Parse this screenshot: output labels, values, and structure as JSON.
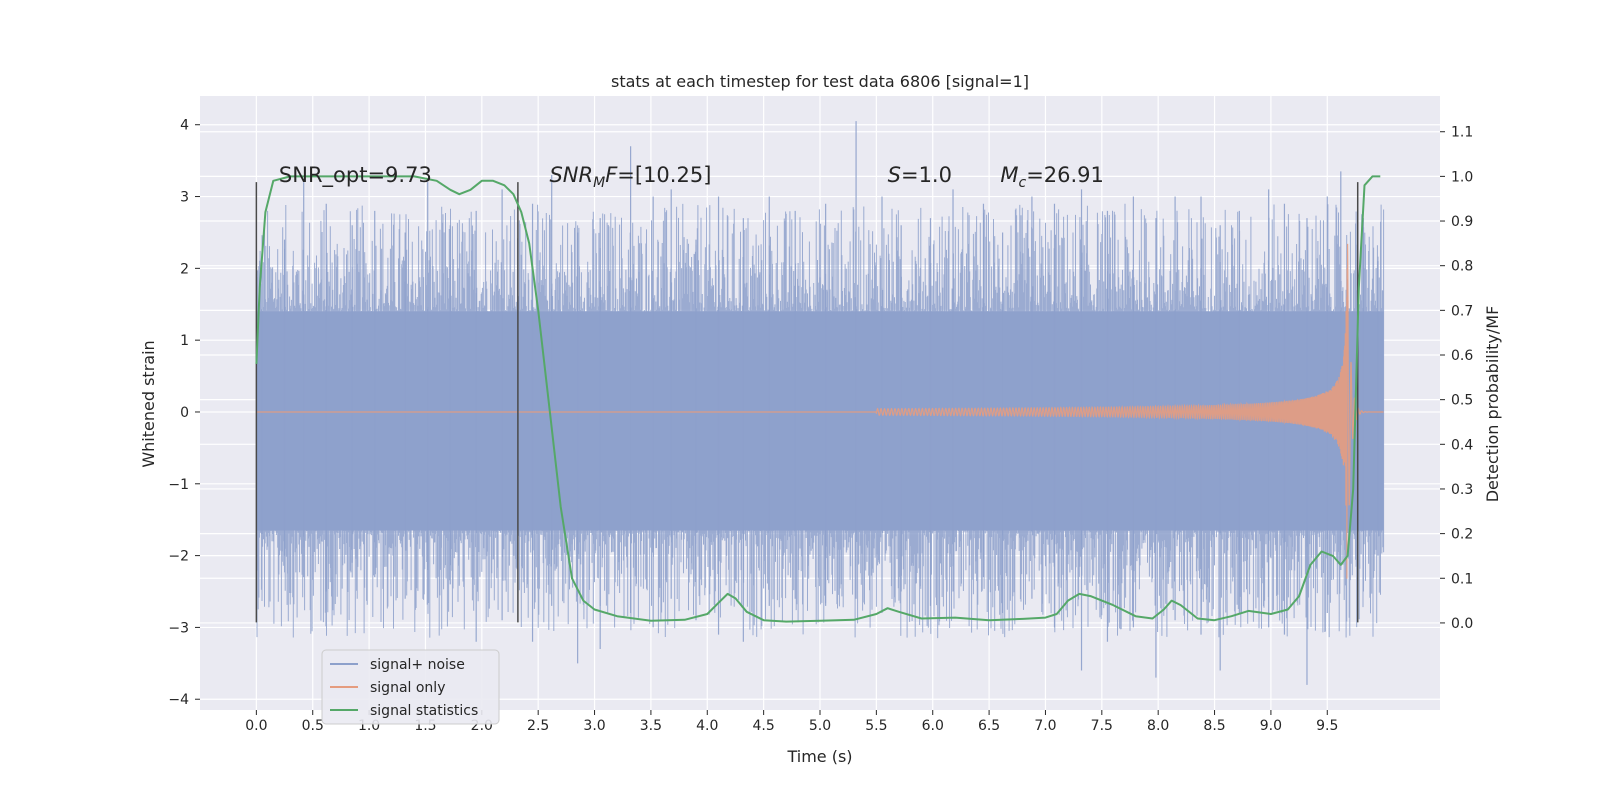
{
  "chart_data": {
    "type": "line",
    "title": "stats at each timestep for test data 6806 [signal=1]",
    "xlabel": "Time (s)",
    "ylabel": "Whitened strain",
    "ylabel_right": "Detection probability/MF",
    "xlim": [
      -0.5,
      10.5
    ],
    "ylim": [
      -4.15,
      4.4
    ],
    "ylim_right": [
      -0.195,
      1.18
    ],
    "x_ticks": [
      "0.0",
      "0.5",
      "1.0",
      "1.5",
      "2.0",
      "2.5",
      "3.0",
      "3.5",
      "4.0",
      "4.5",
      "5.0",
      "5.5",
      "6.0",
      "6.5",
      "7.0",
      "7.5",
      "8.0",
      "8.5",
      "9.0",
      "9.5"
    ],
    "y_ticks": [
      "−4",
      "−3",
      "−2",
      "−1",
      "0",
      "1",
      "2",
      "3",
      "4"
    ],
    "y_ticks_right": [
      "0.0",
      "0.1",
      "0.2",
      "0.3",
      "0.4",
      "0.5",
      "0.6",
      "0.7",
      "0.8",
      "0.9",
      "1.0",
      "1.1"
    ],
    "colors": {
      "noise": "#8da0cb",
      "signal": "#e59c7f",
      "stat": "#55a868",
      "vline": "#4a4a4a"
    },
    "annotations": [
      {
        "text": "SNR_opt=9.73",
        "x": 0.2,
        "y": 3.2
      },
      {
        "text": "SNR_MF=[10.25]",
        "x": 2.6,
        "y": 3.2
      },
      {
        "text": "S=1.0",
        "x": 5.6,
        "y": 3.2
      },
      {
        "text": "M_c=26.91",
        "x": 6.6,
        "y": 3.2
      }
    ],
    "vlines": [
      0.0,
      2.32,
      9.77
    ],
    "vline_range": [
      -2.93,
      3.2
    ],
    "series": [
      {
        "name": "signal+ noise",
        "note_hidden": "",
        "envelope": {
          "x": [
            0.0,
            10.0
          ],
          "typical": 1.4
        },
        "spikes": [
          [
            0.05,
            2.2,
            -1.7
          ],
          [
            0.25,
            2.4,
            -2.0
          ],
          [
            0.42,
            3.2,
            -2.3
          ],
          [
            0.62,
            2.9,
            -2.5
          ],
          [
            0.85,
            2.6,
            -2.1
          ],
          [
            1.05,
            2.8,
            -2.3
          ],
          [
            1.32,
            2.5,
            -2.6
          ],
          [
            1.52,
            3.2,
            -2.2
          ],
          [
            1.72,
            2.6,
            -2.4
          ],
          [
            1.95,
            2.8,
            -3.2
          ],
          [
            2.18,
            3.1,
            -2.9
          ],
          [
            2.45,
            2.9,
            -3.2
          ],
          [
            2.62,
            3.3,
            -2.7
          ],
          [
            2.85,
            2.5,
            -3.5
          ],
          [
            3.05,
            2.7,
            -3.3
          ],
          [
            3.32,
            3.7,
            -2.8
          ],
          [
            3.52,
            3.0,
            -3.0
          ],
          [
            3.68,
            3.1,
            -2.6
          ],
          [
            3.9,
            2.4,
            -2.9
          ],
          [
            4.1,
            3.0,
            -3.1
          ],
          [
            4.32,
            2.7,
            -3.2
          ],
          [
            4.55,
            3.0,
            -2.7
          ],
          [
            4.78,
            2.8,
            -2.6
          ],
          [
            5.05,
            2.9,
            -2.7
          ],
          [
            5.32,
            4.05,
            -2.6
          ],
          [
            5.55,
            3.0,
            -2.8
          ],
          [
            5.72,
            2.6,
            -2.5
          ],
          [
            5.98,
            2.7,
            -2.7
          ],
          [
            6.18,
            3.1,
            -2.5
          ],
          [
            6.45,
            2.9,
            -2.3
          ],
          [
            6.62,
            2.5,
            -2.8
          ],
          [
            6.88,
            3.0,
            -2.6
          ],
          [
            7.08,
            2.9,
            -3.0
          ],
          [
            7.32,
            3.1,
            -3.6
          ],
          [
            7.55,
            2.8,
            -3.2
          ],
          [
            7.78,
            3.0,
            -3.0
          ],
          [
            7.98,
            2.7,
            -3.7
          ],
          [
            8.15,
            3.0,
            -2.9
          ],
          [
            8.38,
            3.0,
            -3.1
          ],
          [
            8.55,
            2.6,
            -3.6
          ],
          [
            8.72,
            2.8,
            -2.8
          ],
          [
            8.98,
            3.1,
            -3.0
          ],
          [
            9.12,
            2.9,
            -3.1
          ],
          [
            9.32,
            2.7,
            -3.8
          ],
          [
            9.5,
            3.0,
            -2.8
          ],
          [
            9.62,
            3.35,
            -2.2
          ],
          [
            9.82,
            2.7,
            -2.5
          ],
          [
            9.95,
            2.1,
            -2.0
          ]
        ]
      },
      {
        "name": "signal only",
        "chirp": {
          "t_start": 5.5,
          "t_merge": 9.68,
          "peak": 2.4
        }
      },
      {
        "name": "signal statistics",
        "x": [
          0.0,
          0.03,
          0.08,
          0.15,
          0.3,
          0.6,
          1.0,
          1.4,
          1.6,
          1.72,
          1.8,
          1.9,
          2.0,
          2.1,
          2.2,
          2.28,
          2.35,
          2.42,
          2.5,
          2.6,
          2.7,
          2.8,
          2.9,
          3.0,
          3.2,
          3.5,
          3.8,
          4.0,
          4.1,
          4.18,
          4.25,
          4.35,
          4.5,
          4.7,
          5.0,
          5.3,
          5.5,
          5.6,
          5.7,
          5.9,
          6.2,
          6.5,
          6.8,
          7.0,
          7.1,
          7.2,
          7.3,
          7.4,
          7.6,
          7.8,
          7.95,
          8.05,
          8.12,
          8.2,
          8.35,
          8.5,
          8.65,
          8.8,
          9.0,
          9.15,
          9.25,
          9.35,
          9.45,
          9.55,
          9.62,
          9.68,
          9.73,
          9.78,
          9.83,
          9.9,
          9.97
        ],
        "y": [
          0.58,
          0.75,
          0.92,
          0.99,
          1.0,
          1.0,
          1.0,
          1.0,
          0.99,
          0.97,
          0.96,
          0.97,
          0.99,
          0.99,
          0.98,
          0.96,
          0.92,
          0.85,
          0.7,
          0.48,
          0.26,
          0.1,
          0.05,
          0.03,
          0.015,
          0.005,
          0.007,
          0.02,
          0.045,
          0.065,
          0.055,
          0.025,
          0.006,
          0.003,
          0.005,
          0.007,
          0.02,
          0.033,
          0.025,
          0.01,
          0.012,
          0.006,
          0.009,
          0.012,
          0.02,
          0.05,
          0.065,
          0.06,
          0.04,
          0.015,
          0.01,
          0.03,
          0.05,
          0.04,
          0.01,
          0.006,
          0.015,
          0.027,
          0.02,
          0.03,
          0.06,
          0.13,
          0.16,
          0.15,
          0.13,
          0.15,
          0.3,
          0.75,
          0.98,
          1.0,
          1.0
        ]
      }
    ],
    "legend": {
      "position": "lower-left",
      "entries": [
        "signal+ noise",
        "signal only",
        "signal statistics"
      ]
    }
  }
}
